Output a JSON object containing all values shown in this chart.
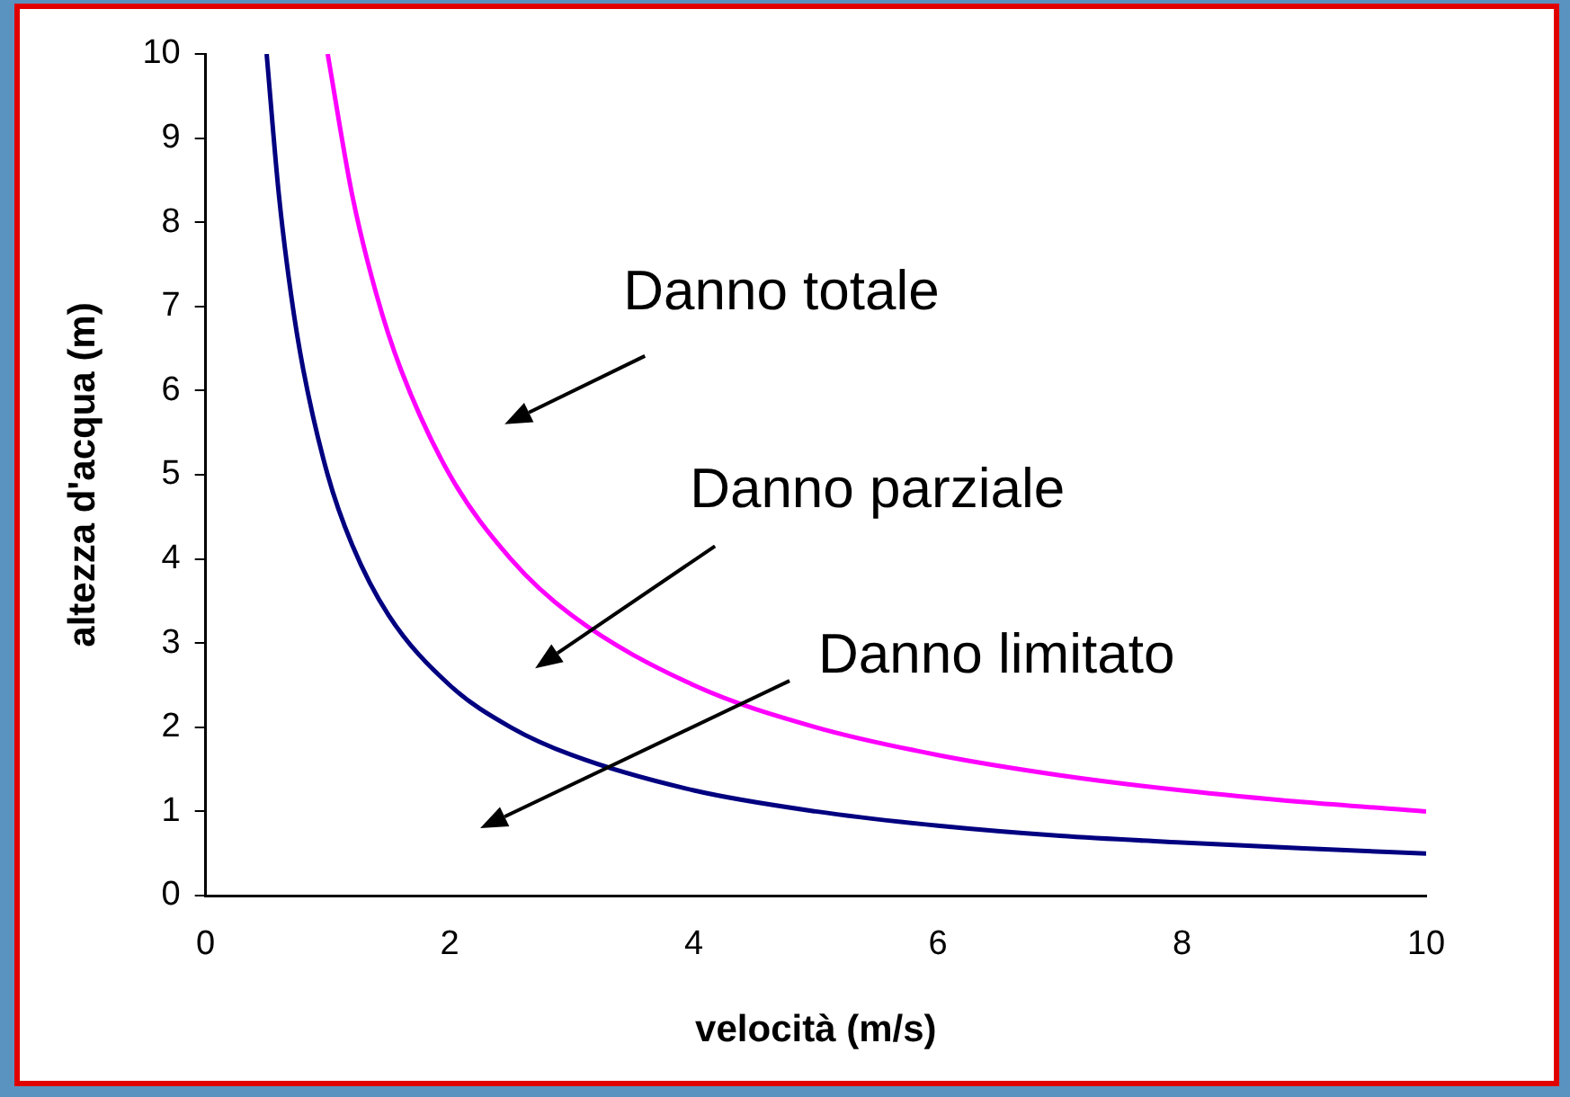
{
  "chart_data": {
    "type": "line",
    "xlabel": "velocità (m/s)",
    "ylabel": "altezza d'acqua (m)",
    "xlim": [
      0,
      10
    ],
    "xticks": [
      0,
      2,
      4,
      6,
      8,
      10
    ],
    "ylim": [
      0,
      10
    ],
    "yticks": [
      0,
      1,
      2,
      3,
      4,
      5,
      6,
      7,
      8,
      9,
      10
    ],
    "grid": false,
    "legend": false,
    "marker": "none",
    "line_style": "solid",
    "series": [
      {
        "color": "#000080",
        "x": [
          0.5,
          0.6,
          0.7,
          0.8,
          1,
          1.2,
          1.5,
          2,
          2.5,
          3,
          4,
          5,
          6,
          7,
          8,
          9,
          10
        ],
        "values": [
          10,
          8.33,
          7.14,
          6.25,
          5,
          4.17,
          3.33,
          2.5,
          2,
          1.67,
          1.25,
          1,
          0.83,
          0.71,
          0.63,
          0.56,
          0.5
        ]
      },
      {
        "color": "#ff00ff",
        "x": [
          1,
          1.2,
          1.4,
          1.6,
          2,
          2.5,
          3,
          4,
          5,
          6,
          7,
          8,
          9,
          10
        ],
        "values": [
          10,
          8.33,
          7.14,
          6.25,
          5,
          4,
          3.33,
          2.5,
          2,
          1.67,
          1.43,
          1.25,
          1.11,
          1
        ]
      }
    ],
    "annotations": [
      "Danno totale",
      "Danno parziale",
      "Danno limitato"
    ]
  }
}
